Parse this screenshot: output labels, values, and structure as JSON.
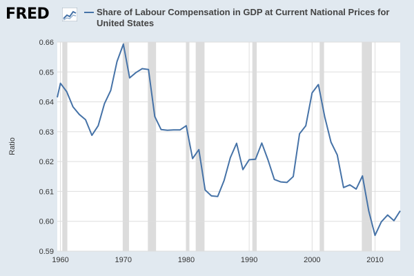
{
  "logo": {
    "text": "FRED",
    "icon": "fred-chart-icon"
  },
  "colors": {
    "series": "#4572a7",
    "recession": "#dcdcdc",
    "grid": "#dddddd",
    "plot_bg": "#ffffff",
    "outer_bg": "#e1e9f0"
  },
  "chart_data": {
    "type": "line",
    "title": "Share of Labour Compensation in GDP at Current National Prices for United States",
    "xlabel": "",
    "ylabel": "Ratio",
    "xlim": [
      1959.5,
      2014
    ],
    "ylim": [
      0.59,
      0.66
    ],
    "yticks": [
      "0.59",
      "0.60",
      "0.61",
      "0.62",
      "0.63",
      "0.64",
      "0.65",
      "0.66"
    ],
    "xticks": [
      "1960",
      "1970",
      "1980",
      "1990",
      "2000",
      "2010"
    ],
    "grid": true,
    "legend": "top",
    "recessions": [
      [
        1960.3,
        1961.1
      ],
      [
        1969.9,
        1970.9
      ],
      [
        1973.9,
        1975.2
      ],
      [
        1980.0,
        1980.5
      ],
      [
        1981.5,
        1982.9
      ],
      [
        1990.5,
        1991.2
      ],
      [
        2001.2,
        2001.9
      ],
      [
        2007.9,
        2009.5
      ]
    ],
    "series": [
      {
        "name": "Share of Labour Compensation in GDP at Current National Prices for United States",
        "x": [
          1959.5,
          1960,
          1961,
          1962,
          1963,
          1964,
          1965,
          1966,
          1967,
          1968,
          1969,
          1970,
          1971,
          1972,
          1973,
          1974,
          1975,
          1976,
          1977,
          1978,
          1979,
          1980,
          1981,
          1982,
          1983,
          1984,
          1985,
          1986,
          1987,
          1988,
          1989,
          1990,
          1991,
          1992,
          1993,
          1994,
          1995,
          1996,
          1997,
          1998,
          1999,
          2000,
          2001,
          2002,
          2003,
          2004,
          2005,
          2006,
          2007,
          2008,
          2009,
          2010,
          2011,
          2012,
          2013,
          2014
        ],
        "values": [
          0.6415,
          0.6462,
          0.6434,
          0.6383,
          0.6358,
          0.634,
          0.6288,
          0.632,
          0.6394,
          0.6438,
          0.6535,
          0.6593,
          0.648,
          0.6498,
          0.6511,
          0.6508,
          0.6351,
          0.6307,
          0.6305,
          0.6306,
          0.6306,
          0.632,
          0.621,
          0.624,
          0.6105,
          0.6085,
          0.6083,
          0.6136,
          0.6213,
          0.6261,
          0.6173,
          0.6206,
          0.6208,
          0.6262,
          0.6205,
          0.614,
          0.6132,
          0.613,
          0.615,
          0.6293,
          0.632,
          0.643,
          0.6458,
          0.635,
          0.6265,
          0.6222,
          0.6113,
          0.6122,
          0.6108,
          0.6152,
          0.6035,
          0.5953,
          0.5998,
          0.6021,
          0.6002,
          0.6035
        ]
      }
    ]
  }
}
